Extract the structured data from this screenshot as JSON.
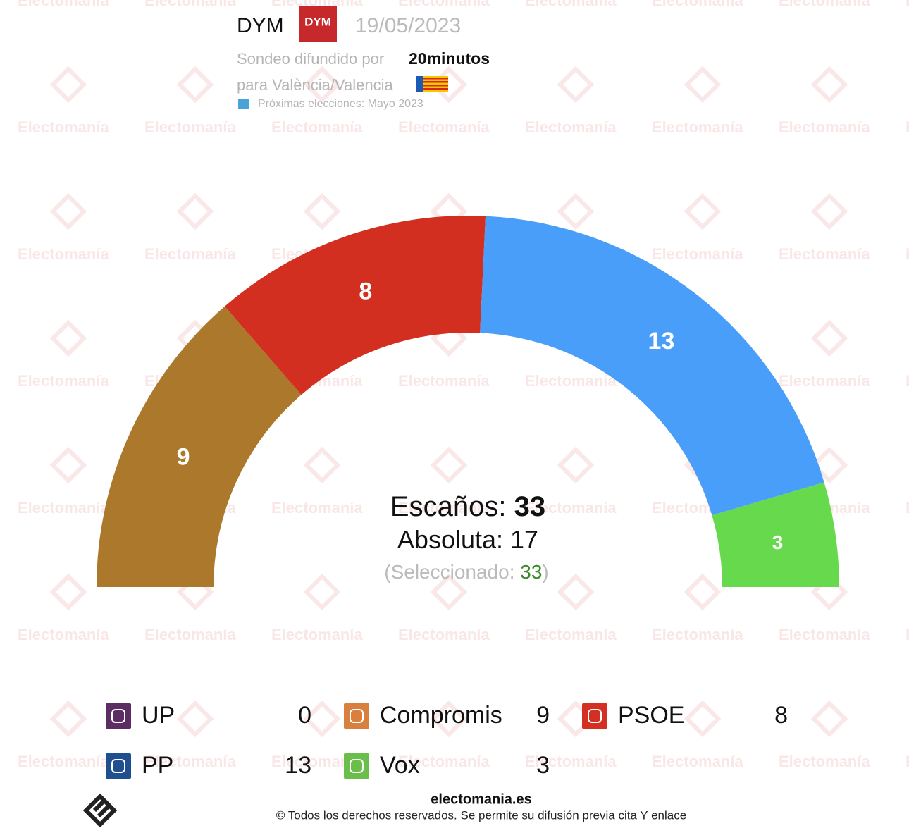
{
  "header": {
    "pollster": "DYM",
    "date": "19/05/2023",
    "published_by_label": "Sondeo difundido por",
    "published_by": "20minutos",
    "region": "para València/Valencia",
    "next_election": "Próximas elecciones: Mayo 2023"
  },
  "watermark": "Electomanía",
  "chart_data": {
    "type": "semicircle",
    "categories": [
      "UP",
      "Compromis",
      "PSOE",
      "PP",
      "Vox"
    ],
    "values": [
      0,
      9,
      8,
      13,
      3
    ],
    "colors": [
      "#6b3a73",
      "#ab782c",
      "#d22f20",
      "#489ef8",
      "#66da4c"
    ],
    "icon_colors": [
      "#5c2d63",
      "#d9803e",
      "#d32f22",
      "#1f4f8f",
      "#6abf4b"
    ],
    "seats_label": "Escaños:",
    "total": 33,
    "majority_label": "Absoluta:",
    "majority": 17,
    "selected_label": "(Seleccionado:",
    "selected": 33,
    "selected_close": ")"
  },
  "footer": {
    "site": "electomania.es",
    "copyright": "© Todos los derechos reservados. Se permite su difusión previa cita Y enlace"
  }
}
